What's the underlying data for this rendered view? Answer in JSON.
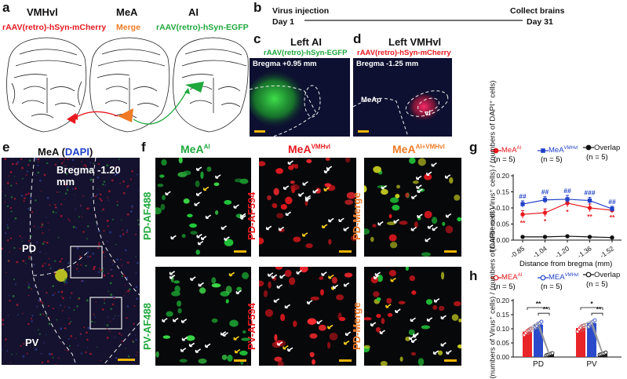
{
  "panels": {
    "a": {
      "letter": "a",
      "titles": [
        "VMHvl",
        "MeA",
        "AI"
      ],
      "virus_left": "rAAV(retro)-hSyn-mCherry",
      "merge_label": "Merge",
      "virus_right": "rAAV(retro)-hSyn-EGFP"
    },
    "b": {
      "letter": "b",
      "start_event": "Virus injection",
      "end_event": "Collect brains",
      "start_day": "Day 1",
      "end_day": "Day 31"
    },
    "c": {
      "letter": "c",
      "title": "Left AI",
      "virus": "rAAV(retro)-hSyn-EGFP",
      "bregma": "Bregma +0.95 mm"
    },
    "d": {
      "letter": "d",
      "title": "Left VMHvl",
      "virus": "rAAV(retro)-hSyn-mCherry",
      "bregma": "Bregma -1.25 mm",
      "region_meap": "MeAp",
      "region_vl": "vl"
    },
    "e": {
      "letter": "e",
      "title_main": "MeA (",
      "title_dapi": "DAPI",
      "title_close": ")",
      "bregma": "Bregma -1.20 mm",
      "region_pd": "PD",
      "region_pv": "PV"
    },
    "f": {
      "letter": "f",
      "col1_title": "MeA",
      "col1_sup": "AI",
      "col2_title": "MeA",
      "col2_sup": "VMHvl",
      "col3_title": "MeA",
      "col3_sup": "AI+VMHvl",
      "row_labels": [
        "PD-AF488",
        "PD-AF594",
        "PD-Merge",
        "PV-AF488",
        "PV-AF594",
        "PD-Merge"
      ]
    },
    "g": {
      "letter": "g"
    },
    "h": {
      "letter": "h"
    }
  },
  "colors": {
    "red": "#e8181e",
    "blue": "#2040c8",
    "green": "#1fa83c",
    "orange": "#f07a25",
    "black": "#111111"
  },
  "chart_data": [
    {
      "id": "g",
      "type": "line",
      "xlabel": "Distance from bregma (mm)",
      "ylabel": "(numbers of Virus⁺ cells) / (numbers of DAPI⁺ cells)",
      "x": [
        "-0.85",
        "-1.04",
        "-1.20",
        "-1.36",
        "-1.52"
      ],
      "ylim": [
        0,
        0.2
      ],
      "yticks": [
        "0.00",
        "0.05",
        "0.10",
        "0.15",
        "0.20"
      ],
      "series": [
        {
          "name": "MeA",
          "sup": "AI",
          "n": "(n = 5)",
          "color": "#e8181e",
          "marker": "circle",
          "values": [
            0.08,
            0.085,
            0.115,
            0.1,
            0.093
          ],
          "err": [
            0.012,
            0.012,
            0.012,
            0.012,
            0.008
          ]
        },
        {
          "name": "MeA",
          "sup": "VMHvl",
          "n": "(n = 5)",
          "color": "#2040c8",
          "marker": "square",
          "values": [
            0.112,
            0.125,
            0.127,
            0.123,
            0.097
          ],
          "err": [
            0.01,
            0.01,
            0.012,
            0.01,
            0.008
          ]
        },
        {
          "name": "Overlap",
          "sup": "",
          "n": "(n = 5)",
          "color": "#111111",
          "marker": "circle",
          "values": [
            0.01,
            0.01,
            0.012,
            0.01,
            0.008
          ],
          "err": [
            0.002,
            0.002,
            0.002,
            0.002,
            0.002
          ]
        }
      ],
      "annotations": {
        "blue": [
          "##",
          "##",
          "##",
          "###",
          "##"
        ],
        "red": [
          "**",
          "*",
          "*",
          "**",
          "**"
        ]
      }
    },
    {
      "id": "h",
      "type": "bar",
      "ylabel": "(numbers of Virus⁺ cells) / (numbers of DAPI⁺ cells)",
      "categories": [
        "PD",
        "PV"
      ],
      "ylim": [
        0,
        0.2
      ],
      "yticks": [
        "0.00",
        "0.05",
        "0.10",
        "0.15",
        "0.20"
      ],
      "series": [
        {
          "name": "MEA",
          "sup": "AI",
          "n": "(n = 5)",
          "color": "#e8181e",
          "values": [
            0.09,
            0.103
          ],
          "points": [
            [
              0.078,
              0.085,
              0.092,
              0.095,
              0.1
            ],
            [
              0.09,
              0.098,
              0.105,
              0.11,
              0.112
            ]
          ]
        },
        {
          "name": "MEA",
          "sup": "VMHvl",
          "n": "(n = 5)",
          "color": "#2040c8",
          "values": [
            0.115,
            0.12
          ],
          "points": [
            [
              0.105,
              0.11,
              0.118,
              0.12,
              0.125
            ],
            [
              0.108,
              0.115,
              0.12,
              0.126,
              0.13
            ]
          ]
        },
        {
          "name": "Overlap",
          "sup": "",
          "n": "(n = 5)",
          "color": "#111111",
          "values": [
            0.01,
            0.012
          ],
          "points": [
            [
              0.006,
              0.008,
              0.01,
              0.012,
              0.014
            ],
            [
              0.008,
              0.01,
              0.012,
              0.013,
              0.016
            ]
          ]
        }
      ],
      "significance": [
        "**",
        "**",
        "*",
        "**"
      ]
    }
  ]
}
